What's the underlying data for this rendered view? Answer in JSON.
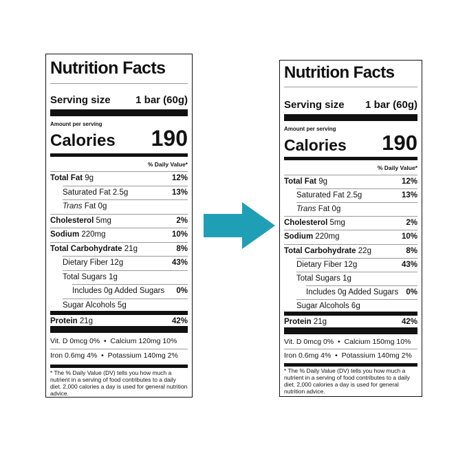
{
  "before": {
    "title": "Nutrition Facts",
    "serving_label": "Serving size",
    "serving_value": "1 bar (60g)",
    "amount_per_serving": "Amount per serving",
    "calories_label": "Calories",
    "calories_value": "190",
    "dv_header": "% Daily Value*",
    "rows": [
      {
        "name": "Total Fat",
        "amount": "9g",
        "dv": "12%"
      },
      {
        "name": "Saturated Fat",
        "amount": "2.5g",
        "dv": "13%"
      },
      {
        "name": "Trans",
        "amount": "Fat 0g",
        "dv": ""
      },
      {
        "name": "Cholesterol",
        "amount": "5mg",
        "dv": "2%"
      },
      {
        "name": "Sodium",
        "amount": "220mg",
        "dv": "10%"
      },
      {
        "name": "Total Carbohydrate",
        "amount": "21g",
        "dv": "8%"
      },
      {
        "name": "Dietary Fiber",
        "amount": "12g",
        "dv": "43%"
      },
      {
        "name": "Total Sugars",
        "amount": "1g",
        "dv": ""
      },
      {
        "name": "Includes 0g Added Sugars",
        "amount": "",
        "dv": "0%"
      },
      {
        "name": "Sugar Alcohols",
        "amount": "5g",
        "dv": ""
      },
      {
        "name": "Protein",
        "amount": "21g",
        "dv": "42%"
      }
    ],
    "vit_row1_left": "Vit. D 0mcg 0%",
    "vit_row1_right": "Calcium 120mg 10%",
    "vit_row2_left": "Iron 0.6mg 4%",
    "vit_row2_right": "Potassium 140mg 2%",
    "bullet": "•",
    "footnote": "* The % Daily Value (DV) tells you how much a nutrient in a serving of food contributes to a daily diet. 2,000 calories a day is used for general nutrition advice."
  },
  "after": {
    "title": "Nutrition Facts",
    "serving_label": "Serving size",
    "serving_value": "1 bar (60g)",
    "amount_per_serving": "Amount per serving",
    "calories_label": "Calories",
    "calories_value": "190",
    "dv_header": "% Daily Value*",
    "rows": [
      {
        "name": "Total Fat",
        "amount": "9g",
        "dv": "12%"
      },
      {
        "name": "Saturated Fat",
        "amount": "2.5g",
        "dv": "13%"
      },
      {
        "name": "Trans",
        "amount": "Fat 0g",
        "dv": ""
      },
      {
        "name": "Cholesterol",
        "amount": "5mg",
        "dv": "2%"
      },
      {
        "name": "Sodium",
        "amount": "220mg",
        "dv": "10%"
      },
      {
        "name": "Total Carbohydrate",
        "amount": "22g",
        "dv": "8%"
      },
      {
        "name": "Dietary Fiber",
        "amount": "12g",
        "dv": "43%"
      },
      {
        "name": "Total Sugars",
        "amount": "1g",
        "dv": ""
      },
      {
        "name": "Includes 0g Added Sugars",
        "amount": "",
        "dv": "0%"
      },
      {
        "name": "Sugar Alcohols",
        "amount": "6g",
        "dv": ""
      },
      {
        "name": "Protein",
        "amount": "21g",
        "dv": "42%"
      }
    ],
    "vit_row1_left": "Vit. D 0mcg 0%",
    "vit_row1_right": "Calcium 150mg 10%",
    "vit_row2_left": "Iron 0.6mg 4%",
    "vit_row2_right": "Potassium 140mg 2%",
    "bullet": "•",
    "footnote": "* The % Daily Value (DV) tells you how much a nutrient in a serving of food contributes to a daily diet. 2,000 calories a day is used for general nutrition advice."
  },
  "arrow": {
    "icon": "right-arrow-icon",
    "color": "#1f9fb5"
  }
}
